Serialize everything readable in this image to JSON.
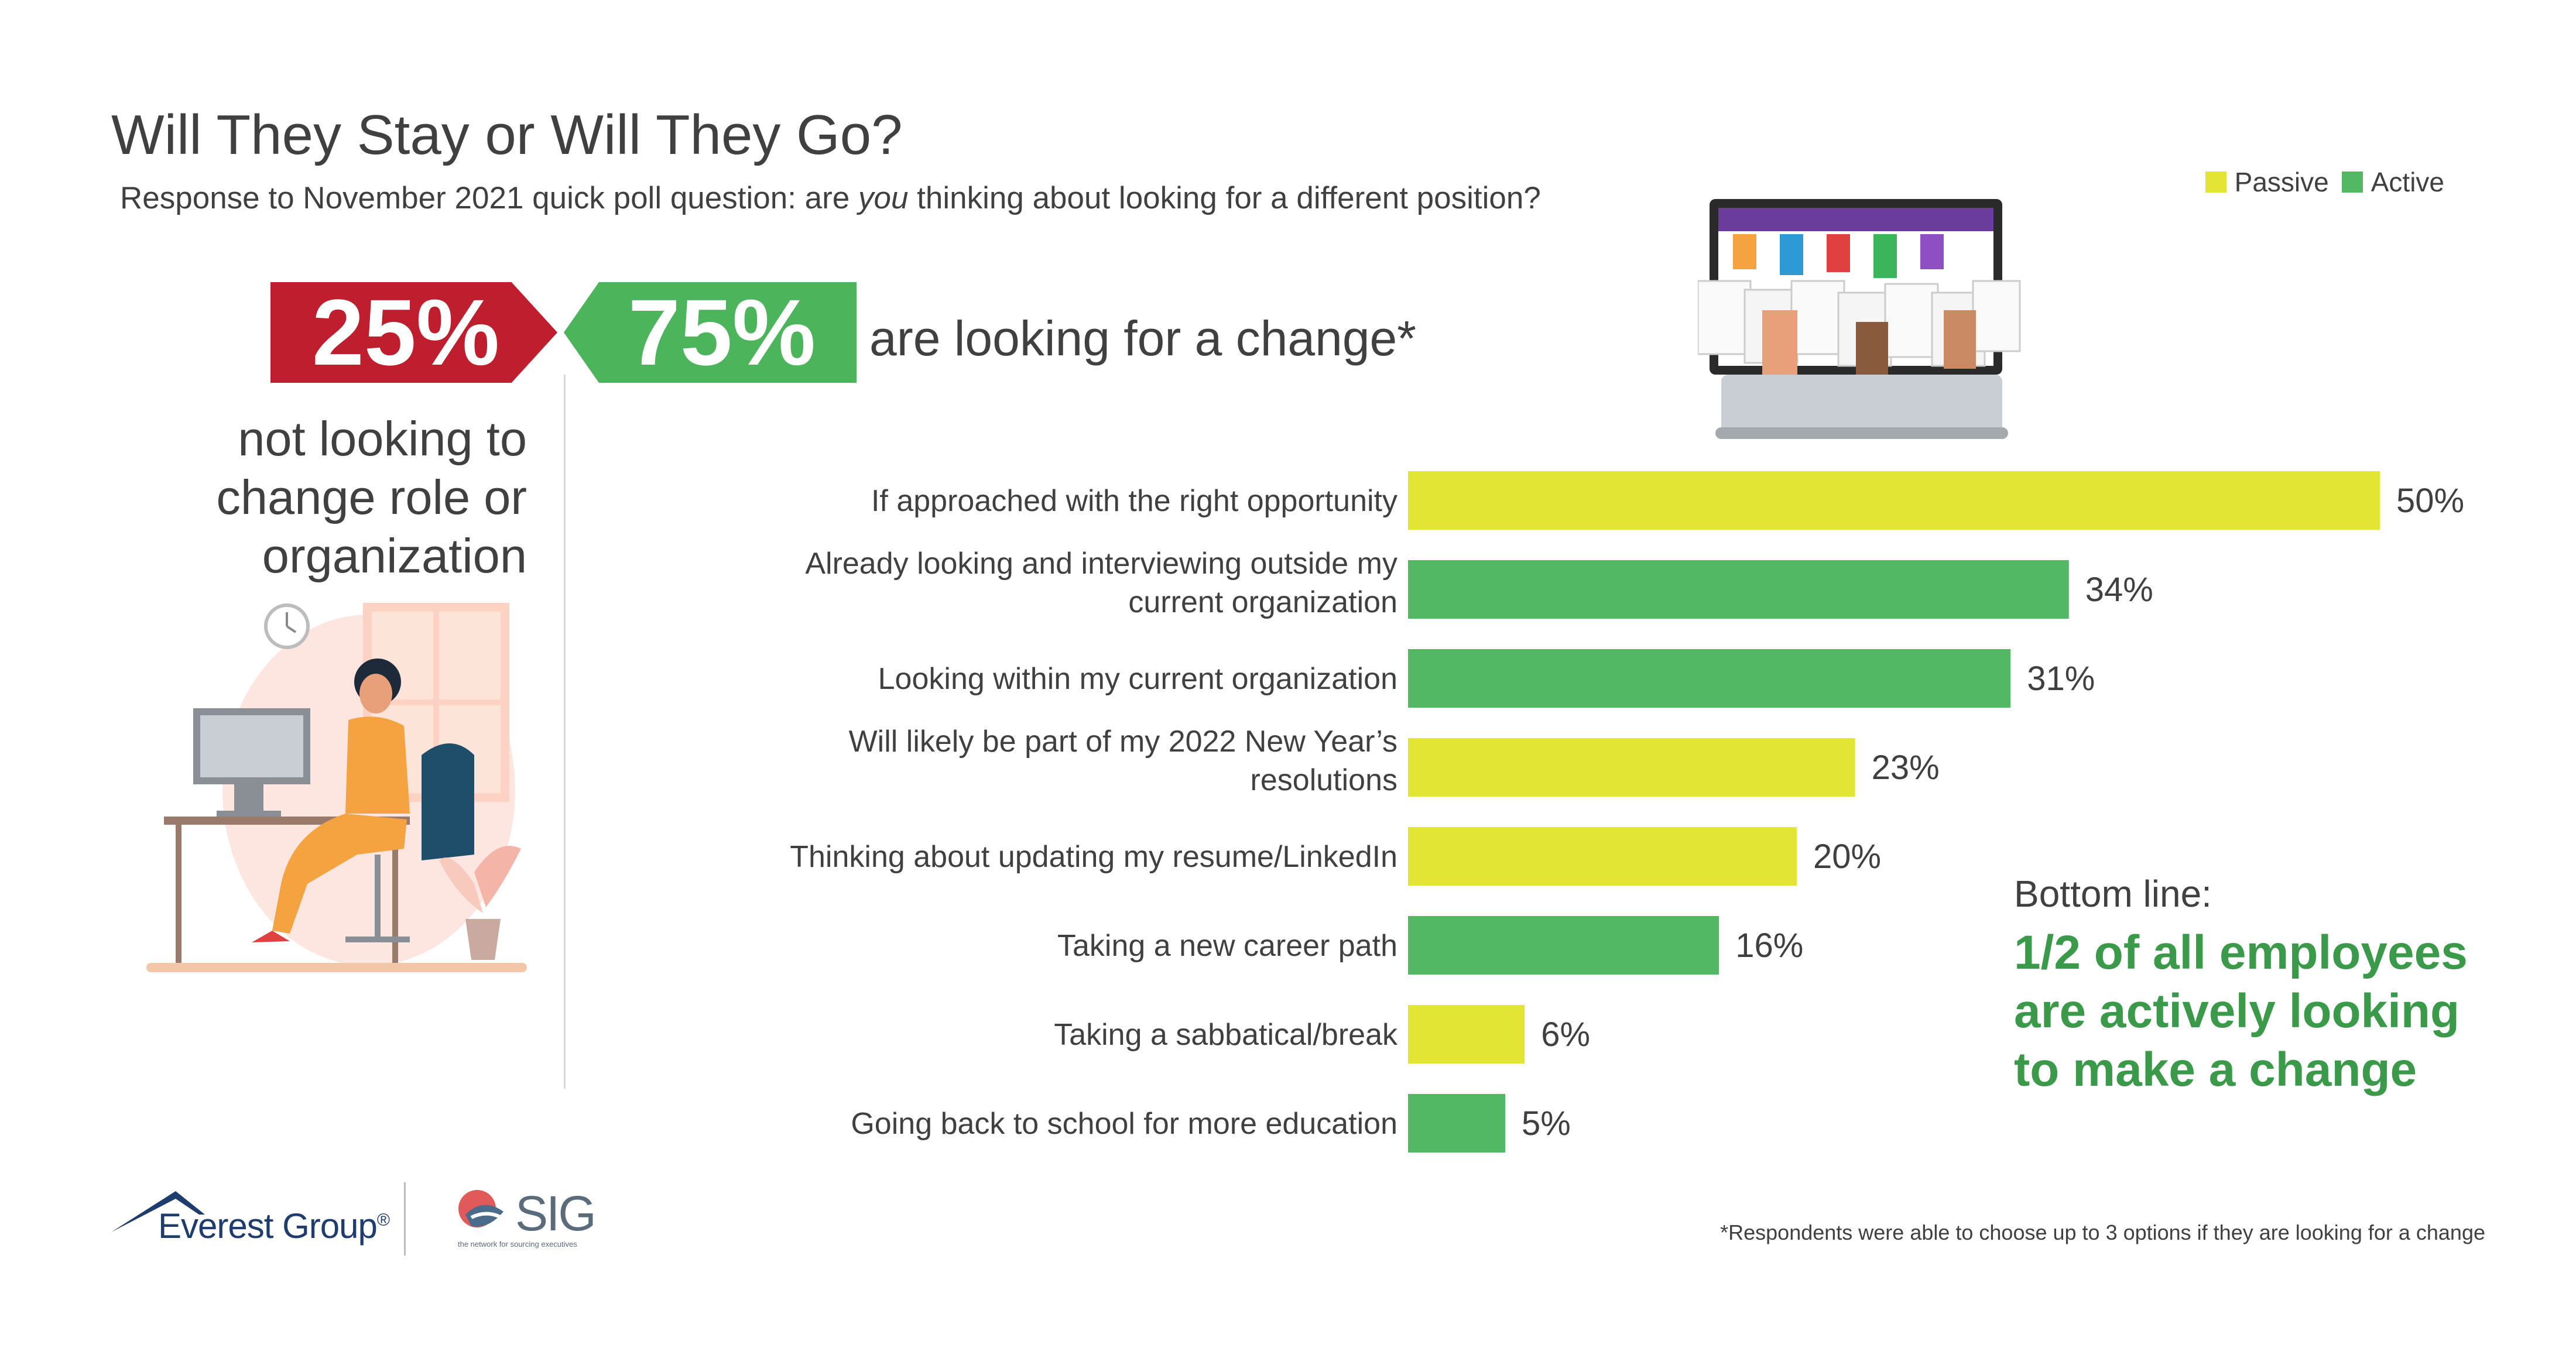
{
  "title": "Will They Stay or Will They Go?",
  "subtitle": {
    "before": "Response to November 2021 quick poll question: are ",
    "emphasis": "you",
    "after": " thinking about looking for a different position?"
  },
  "headline": {
    "not_looking_pct": "25%",
    "looking_pct": "75%",
    "looking_text": "are looking for a change*",
    "not_looking_lines": [
      "not looking to",
      "change role or",
      "organization"
    ]
  },
  "legend": [
    {
      "label": "Passive",
      "color": "#e2e533"
    },
    {
      "label": "Active",
      "color": "#52b864"
    }
  ],
  "chart_data": {
    "type": "bar",
    "orientation": "horizontal",
    "xlim": [
      0,
      50
    ],
    "categories": [
      [
        "If approached with the right opportunity"
      ],
      [
        "Already looking and interviewing outside my",
        "current organization"
      ],
      [
        "Looking within my current organization"
      ],
      [
        "Will likely be part of my 2022 New Year’s",
        "resolutions"
      ],
      [
        "Thinking about updating my resume/LinkedIn"
      ],
      [
        "Taking a new career path"
      ],
      [
        "Taking a sabbatical/break"
      ],
      [
        "Going back to school for more education"
      ]
    ],
    "values": [
      50,
      34,
      31,
      23,
      20,
      16,
      6,
      5
    ],
    "value_labels": [
      "50%",
      "34%",
      "31%",
      "23%",
      "20%",
      "16%",
      "6%",
      "5%"
    ],
    "types": [
      "Passive",
      "Active",
      "Active",
      "Passive",
      "Passive",
      "Active",
      "Passive",
      "Active"
    ],
    "grid": false,
    "legend_position": "top-right"
  },
  "bottom_line": {
    "label": "Bottom line:",
    "text_lines": [
      "1/2 of all employees",
      "are actively looking",
      "to make a change"
    ]
  },
  "footnote": "*Respondents were able to choose up to 3 options if they are looking for a change",
  "logos": {
    "everest": "Everest Group",
    "everest_mark": "®",
    "sig": "SIG",
    "sig_tagline": "the network for sourcing executives"
  }
}
